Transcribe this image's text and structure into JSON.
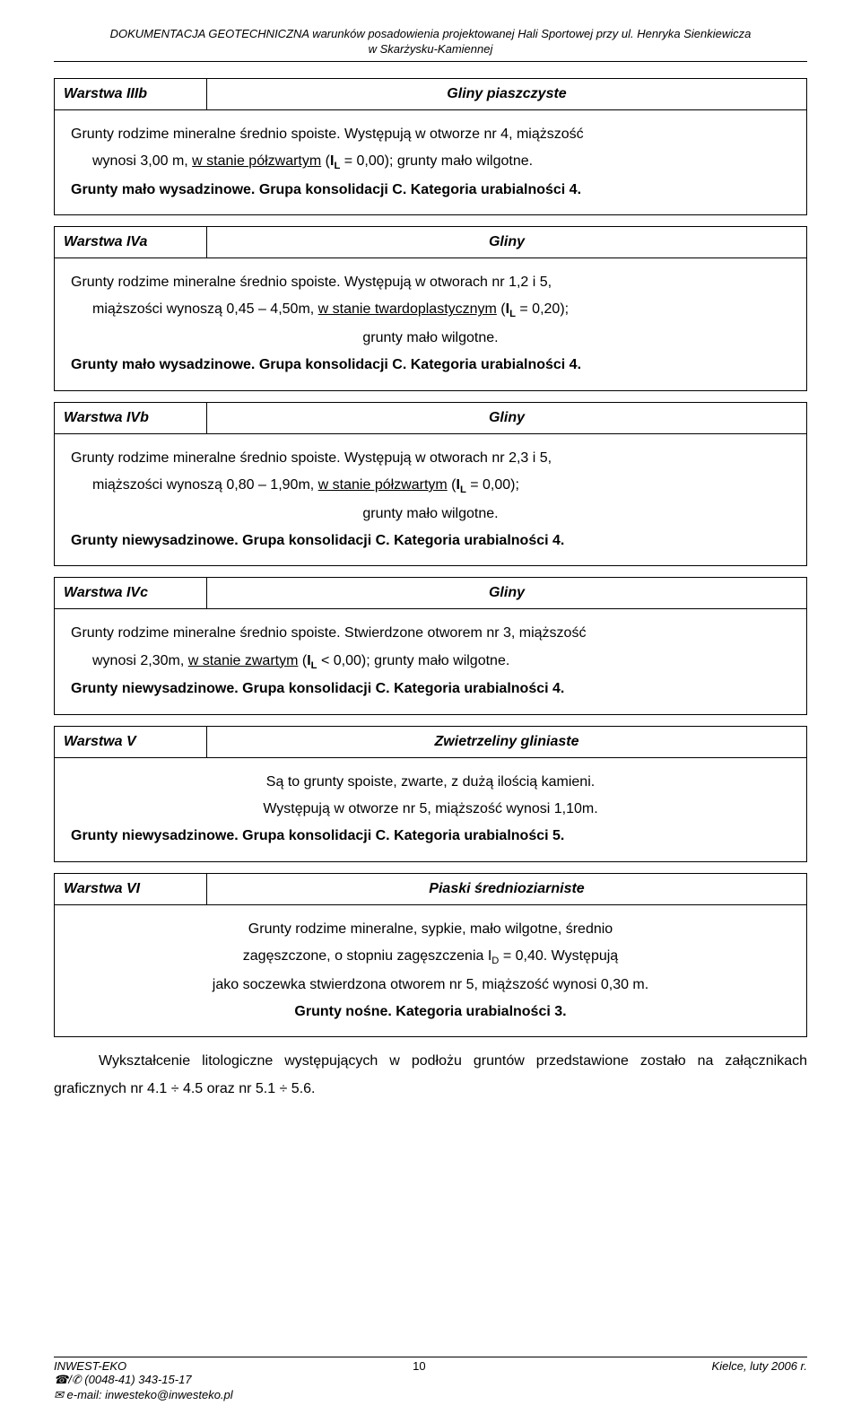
{
  "doc_header": {
    "line1": "DOKUMENTACJA GEOTECHNICZNA warunków posadowienia projektowanej Hali Sportowej przy ul. Henryka Sienkiewicza",
    "line2": "w Skarżysku-Kamiennej"
  },
  "sections": {
    "s1": {
      "label": "Warstwa IIIb",
      "title": "Gliny piaszczyste",
      "body_a": "Grunty rodzime mineralne średnio spoiste. Występują w otworze nr 4, miąższość",
      "body_b_pre": "wynosi   3,00 m, ",
      "body_b_u": "w stanie półzwartym",
      "body_b_post": " (",
      "body_b_il": "I",
      "body_b_sub": "L",
      "body_b_eq": " = 0,00);  grunty mało wilgotne.",
      "body_c": "Grunty mało wysadzinowe. Grupa konsolidacji C. Kategoria urabialności 4."
    },
    "s2": {
      "label": "Warstwa IVa",
      "title": "Gliny",
      "body_a": "Grunty rodzime mineralne średnio spoiste. Występują w otworach nr 1,2 i 5,",
      "body_b_pre": "miąższości wynoszą   0,45 – 4,50m, ",
      "body_b_u": "w stanie twardoplastycznym",
      "body_b_post": "  (",
      "body_b_il": "I",
      "body_b_sub": "L",
      "body_b_eq": " = 0,20);",
      "body_c": "grunty mało wilgotne.",
      "body_d": "Grunty mało wysadzinowe. Grupa konsolidacji C. Kategoria urabialności 4."
    },
    "s3": {
      "label": "Warstwa IVb",
      "title": "Gliny",
      "body_a": "Grunty rodzime mineralne średnio spoiste. Występują w otworach nr 2,3 i 5,",
      "body_b_pre": "miąższości wynoszą   0,80 – 1,90m, ",
      "body_b_u": "w stanie półzwartym",
      "body_b_post": "  (",
      "body_b_il": "I",
      "body_b_sub": "L",
      "body_b_eq": " = 0,00);",
      "body_c": "grunty mało wilgotne.",
      "body_d": "Grunty niewysadzinowe. Grupa konsolidacji C. Kategoria urabialności 4."
    },
    "s4": {
      "label": "Warstwa IVc",
      "title": "Gliny",
      "body_a": "Grunty rodzime mineralne średnio spoiste. Stwierdzone otworem nr 3, miąższość",
      "body_b_pre": "wynosi 2,30m, ",
      "body_b_u": "w stanie zwartym",
      "body_b_post": "  (",
      "body_b_il": "I",
      "body_b_sub": "L",
      "body_b_eq": " < 0,00); grunty mało wilgotne.",
      "body_c": "Grunty niewysadzinowe. Grupa konsolidacji C. Kategoria urabialności 4."
    },
    "s5": {
      "label": "Warstwa V",
      "title": "Zwietrzeliny gliniaste",
      "body_a": "Są to grunty spoiste, zwarte, z dużą ilością kamieni.",
      "body_b": "Występują w otworze nr 5, miąższość wynosi 1,10m.",
      "body_c": "Grunty niewysadzinowe. Grupa konsolidacji C. Kategoria urabialności 5."
    },
    "s6": {
      "label": "Warstwa VI",
      "title": "Piaski średnioziarniste",
      "body_a": "Grunty rodzime mineralne, sypkie, mało wilgotne, średnio",
      "body_b_pre": "zagęszczone, o stopniu zagęszczenia I",
      "body_b_sub": "D",
      "body_b_post": " = 0,40. Występują",
      "body_c": "jako soczewka stwierdzona  otworem nr 5, miąższość wynosi  0,30 m.",
      "body_d": "Grunty nośne. Kategoria urabialności 3."
    }
  },
  "closing_para": "Wykształcenie litologiczne występujących w podłożu gruntów przedstawione zostało na załącznikach graficznych nr 4.1 ÷ 4.5 oraz nr 5.1 ÷ 5.6.",
  "footer": {
    "left": "INWEST-EKO",
    "page": "10",
    "right": "Kielce, luty 2006 r.",
    "phone": "☎/✆ (0048-41) 343-15-17",
    "email": "✉ e-mail: inwesteko@inwesteko.pl"
  }
}
